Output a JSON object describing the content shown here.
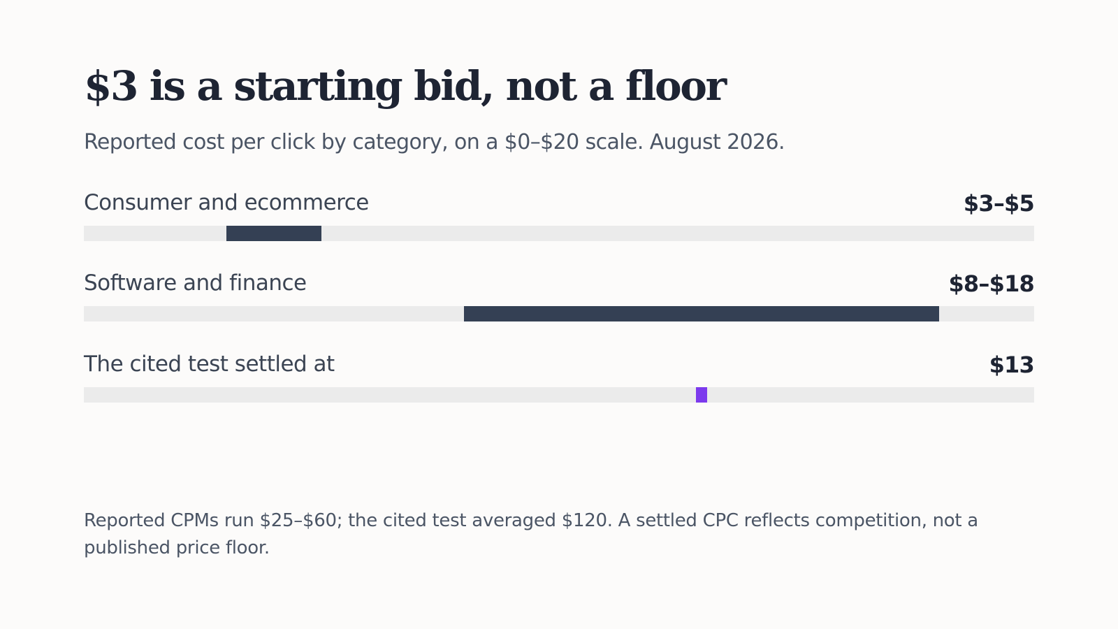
{
  "title": "$3 is a starting bid, not a floor",
  "subtitle": "Reported cost per click by category, on a $0–$20 scale. August 2026.",
  "colors": {
    "range_bar": "#344054",
    "highlight_point": "#7c3aed",
    "track": "#ebebeb",
    "background": "#fcfbfa"
  },
  "chart_data": {
    "type": "bar",
    "xlim": [
      0,
      20
    ],
    "rows": [
      {
        "label": "Consumer and ecommerce",
        "value_label": "$3–$5",
        "start": 3,
        "end": 5,
        "kind": "range"
      },
      {
        "label": "Software and finance",
        "value_label": "$8–$18",
        "start": 8,
        "end": 18,
        "kind": "range"
      },
      {
        "label": "The cited test settled at",
        "value_label": "$13",
        "start": 13,
        "end": 13,
        "kind": "point"
      }
    ]
  },
  "note": "Reported CPMs run $25–$60; the cited test averaged $120. A settled CPC reflects competition, not a published price floor."
}
